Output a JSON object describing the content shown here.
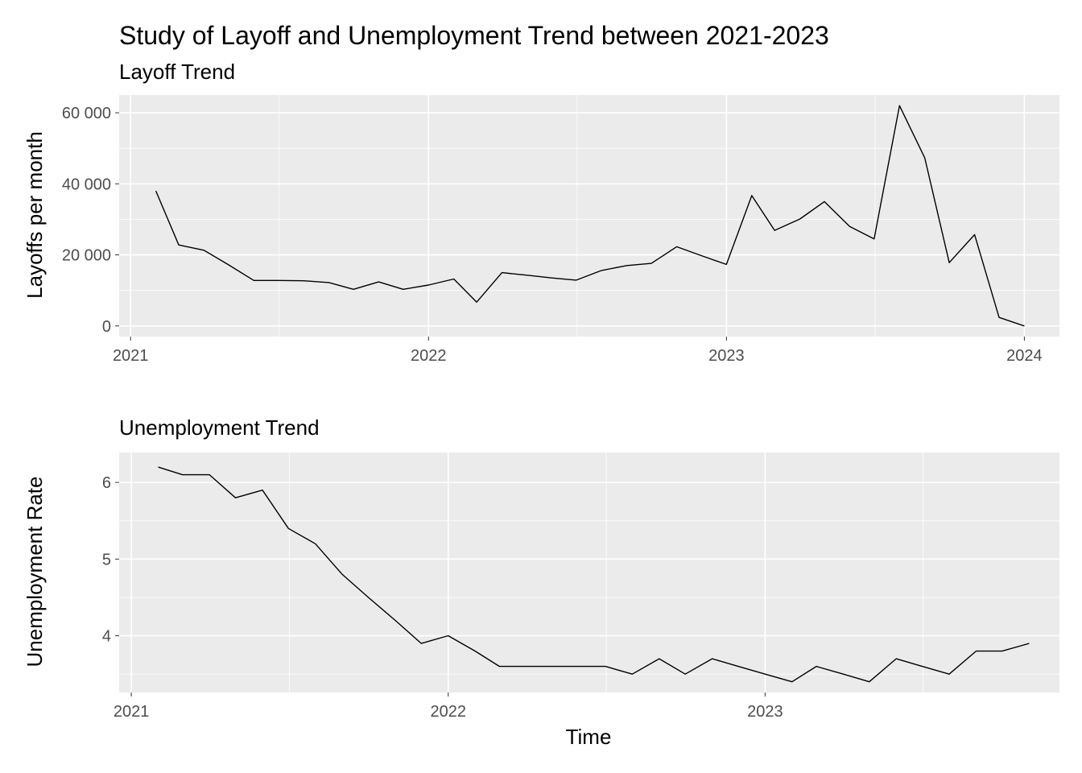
{
  "title": "Study of Layoff and Unemployment Trend between 2021-2023",
  "colors": {
    "panel_background": "#EBEBEB",
    "grid": "#FFFFFF",
    "line": "#000000",
    "tick_text": "#4D4D4D"
  },
  "chart_data": [
    {
      "type": "line",
      "subtitle": "Layoff Trend",
      "xlabel": "",
      "ylabel": "Layoffs per month",
      "grid": true,
      "x_ticks": [
        "2021",
        "2022",
        "2023",
        "2024"
      ],
      "y_ticks": [
        "0",
        "20 000",
        "40 000",
        "60 000"
      ],
      "xlim": [
        "2020-12-18",
        "2024-02-13"
      ],
      "ylim": [
        -3000,
        65000
      ],
      "series": [
        {
          "x": [
            "2021-02-01",
            "2021-03-01",
            "2021-04-01",
            "2021-05-01",
            "2021-06-01",
            "2021-07-01",
            "2021-08-01",
            "2021-09-01",
            "2021-10-01",
            "2021-11-01",
            "2021-12-01",
            "2022-01-01",
            "2022-02-01",
            "2022-03-01",
            "2022-04-01",
            "2022-05-01",
            "2022-06-01",
            "2022-07-01",
            "2022-08-01",
            "2022-09-01",
            "2022-10-01",
            "2022-11-01",
            "2022-12-01",
            "2023-01-01",
            "2023-02-01",
            "2023-03-01",
            "2023-04-01",
            "2023-05-01",
            "2023-06-01",
            "2023-07-01",
            "2023-08-01",
            "2023-09-01",
            "2023-10-01",
            "2023-11-01",
            "2023-12-01",
            "2024-01-01"
          ],
          "values": [
            38000,
            22800,
            21300,
            17200,
            12800,
            12800,
            12700,
            12200,
            10300,
            12400,
            10300,
            11500,
            13200,
            6700,
            15000,
            14300,
            13500,
            12900,
            15600,
            17000,
            17600,
            22300,
            19800,
            17300,
            36700,
            26900,
            30100,
            35000,
            28000,
            24500,
            62000,
            47300,
            17800,
            25700,
            2400,
            0
          ]
        }
      ]
    },
    {
      "type": "line",
      "subtitle": "Unemployment Trend",
      "xlabel": "Time",
      "ylabel": "Unemployment Rate",
      "grid": true,
      "x_ticks": [
        "2021",
        "2022",
        "2023"
      ],
      "y_ticks": [
        "4",
        "5",
        "6"
      ],
      "xlim": [
        "2020-12-18",
        "2023-12-06"
      ],
      "ylim": [
        3.26,
        6.39
      ],
      "series": [
        {
          "x": [
            "2021-02-01",
            "2021-03-01",
            "2021-04-01",
            "2021-05-01",
            "2021-06-01",
            "2021-07-01",
            "2021-08-01",
            "2021-09-01",
            "2021-10-01",
            "2021-11-01",
            "2021-12-01",
            "2022-01-01",
            "2022-02-01",
            "2022-03-01",
            "2022-04-01",
            "2022-05-01",
            "2022-06-01",
            "2022-07-01",
            "2022-08-01",
            "2022-09-01",
            "2022-10-01",
            "2022-11-01",
            "2022-12-01",
            "2023-01-01",
            "2023-02-01",
            "2023-03-01",
            "2023-04-01",
            "2023-05-01",
            "2023-06-01",
            "2023-07-01",
            "2023-08-01",
            "2023-09-01",
            "2023-10-01",
            "2023-11-01"
          ],
          "values": [
            6.2,
            6.1,
            6.1,
            5.8,
            5.9,
            5.4,
            5.2,
            4.8,
            4.5,
            4.2,
            3.9,
            4.0,
            3.8,
            3.6,
            3.6,
            3.6,
            3.6,
            3.6,
            3.5,
            3.7,
            3.5,
            3.7,
            3.6,
            3.5,
            3.4,
            3.6,
            3.5,
            3.4,
            3.7,
            3.6,
            3.5,
            3.8,
            3.8,
            3.9
          ]
        }
      ]
    }
  ]
}
